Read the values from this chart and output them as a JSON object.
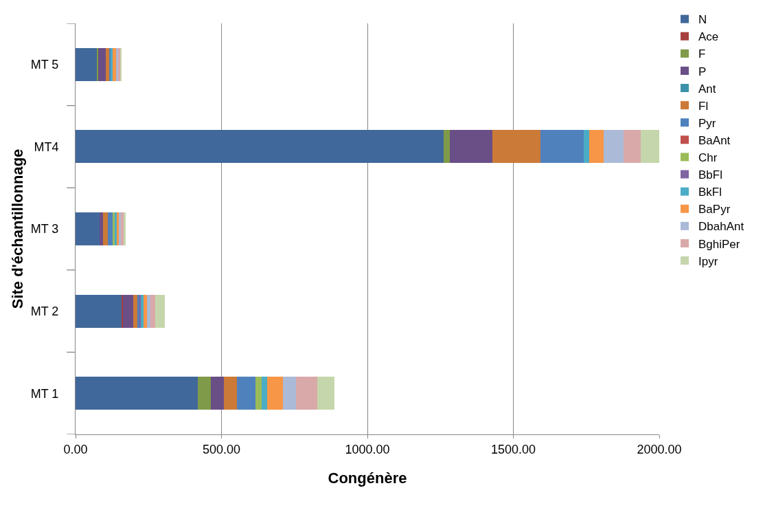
{
  "chart_data": {
    "type": "bar",
    "orientation": "horizontal",
    "stacked": true,
    "xlabel": "Congénère",
    "ylabel": "Site d'échantillonnage",
    "categories": [
      "MT 5",
      "MT4",
      "MT 3",
      "MT 2",
      "MT 1"
    ],
    "xlim": [
      0,
      2000
    ],
    "xticks": [
      {
        "value": 0,
        "label": "0.00"
      },
      {
        "value": 500,
        "label": "500.00"
      },
      {
        "value": 1000,
        "label": "1000.00"
      },
      {
        "value": 1500,
        "label": "1500.00"
      },
      {
        "value": 2000,
        "label": "2000.00"
      }
    ],
    "grid": "x",
    "legend": "right",
    "series": [
      {
        "name": "N",
        "color": "#41689a",
        "values": [
          72,
          1260,
          82,
          159,
          418
        ]
      },
      {
        "name": "Ace",
        "color": "#a5403d",
        "values": [
          0,
          0,
          0,
          4,
          0
        ]
      },
      {
        "name": "F",
        "color": "#7f9a48",
        "values": [
          5,
          23,
          0,
          null,
          45
        ]
      },
      {
        "name": "P",
        "color": "#6a4f87",
        "values": [
          26,
          146,
          12,
          35,
          46
        ]
      },
      {
        "name": "Ant",
        "color": "#3b92a8",
        "values": [
          0,
          0,
          0,
          0,
          0
        ]
      },
      {
        "name": "Fl",
        "color": "#cc7a37",
        "values": [
          12,
          164,
          17,
          14,
          44
        ]
      },
      {
        "name": "Pyr",
        "color": "#4f81bd",
        "values": [
          7,
          147,
          17,
          9,
          63
        ]
      },
      {
        "name": "BaAnt",
        "color": "#c0504d",
        "values": [
          0,
          0,
          0,
          0,
          0
        ]
      },
      {
        "name": "Chr",
        "color": "#9bbb59",
        "values": [
          0,
          0,
          7,
          0,
          22
        ]
      },
      {
        "name": "BbFl",
        "color": "#8064a2",
        "values": [
          0,
          0,
          0,
          3,
          0
        ]
      },
      {
        "name": "BkFl",
        "color": "#4bacc6",
        "values": [
          4,
          19,
          6,
          8,
          19
        ]
      },
      {
        "name": "BaPyr",
        "color": "#f79646",
        "values": [
          12,
          50,
          8,
          13,
          54
        ]
      },
      {
        "name": "DbahAnt",
        "color": "#aabad7",
        "values": [
          8,
          69,
          6,
          11,
          44
        ]
      },
      {
        "name": "BghiPer",
        "color": "#d9a9a9",
        "values": [
          8,
          59,
          9,
          18,
          73
        ]
      },
      {
        "name": "Ipyr",
        "color": "#c6d6ac",
        "values": [
          2,
          62,
          8,
          31,
          58
        ]
      }
    ]
  }
}
